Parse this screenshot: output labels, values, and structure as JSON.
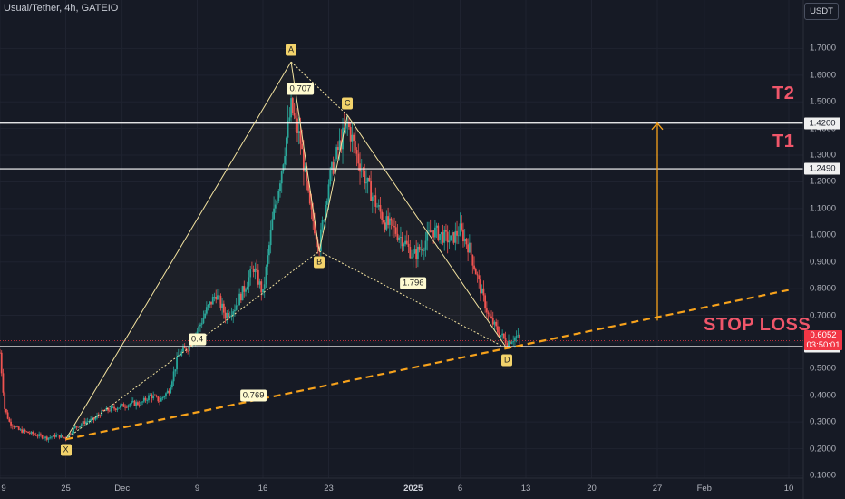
{
  "header": {
    "title": "Usual/Tether, 4h, GATEIO",
    "currency_button": "USDT"
  },
  "levels": {
    "t2": {
      "label": "T2",
      "price_tag": "1.4200"
    },
    "t1": {
      "label": "T1",
      "price_tag": "1.2490"
    },
    "stop": {
      "label": "STOP LOSS",
      "price_tag": "0.5830"
    }
  },
  "current_price": {
    "value": "0.6052",
    "countdown": "03:50:01"
  },
  "pattern": {
    "points": [
      {
        "label": "X",
        "date": "2024-11-25",
        "price": 0.235
      },
      {
        "label": "A",
        "date": "2024-12-19",
        "price": 1.65
      },
      {
        "label": "B",
        "date": "2024-12-22",
        "price": 0.94
      },
      {
        "label": "C",
        "date": "2024-12-25",
        "price": 1.45
      },
      {
        "label": "D",
        "date": "2025-01-11",
        "price": 0.575
      }
    ],
    "ratios": [
      {
        "label": "0.707",
        "date": "2024-12-20",
        "price": 1.55
      },
      {
        "label": "0.4",
        "date": "2024-12-09",
        "price": 0.61
      },
      {
        "label": "1.796",
        "date": "2025-01-01",
        "price": 0.82
      },
      {
        "label": "0.769",
        "date": "2024-12-15",
        "price": 0.4
      }
    ]
  },
  "chart_data": {
    "type": "candlestick",
    "title": "Usual/Tether, 4h, GATEIO",
    "x_range": [
      "2024-11-18",
      "2025-02-10"
    ],
    "ylim": [
      0.1,
      1.8
    ],
    "y_ticks": [
      "1.7000",
      "1.6000",
      "1.5000",
      "1.4000",
      "1.3000",
      "1.2000",
      "1.1000",
      "1.0000",
      "0.9000",
      "0.8000",
      "0.7000",
      "0.6000",
      "0.5000",
      "0.4000",
      "0.3000",
      "0.2000",
      "0.1000"
    ],
    "x_ticks": [
      {
        "label": "9",
        "date": "2024-11-18"
      },
      {
        "label": "25",
        "date": "2024-11-25"
      },
      {
        "label": "Dec",
        "date": "2024-12-01"
      },
      {
        "label": "9",
        "date": "2024-12-09"
      },
      {
        "label": "16",
        "date": "2024-12-16"
      },
      {
        "label": "23",
        "date": "2024-12-23"
      },
      {
        "label": "2025",
        "date": "2025-01-01",
        "bold": true
      },
      {
        "label": "6",
        "date": "2025-01-06"
      },
      {
        "label": "13",
        "date": "2025-01-13"
      },
      {
        "label": "20",
        "date": "2025-01-20"
      },
      {
        "label": "27",
        "date": "2025-01-27"
      },
      {
        "label": "Feb",
        "date": "2025-02-01"
      },
      {
        "label": "10",
        "date": "2025-02-10"
      }
    ],
    "series": [
      {
        "price_path": [
          [
            "2024-11-18",
            0.56
          ],
          [
            "2024-11-18T12",
            0.35
          ],
          [
            "2024-11-19",
            0.3
          ],
          [
            "2024-11-20",
            0.27
          ],
          [
            "2024-11-21",
            0.26
          ],
          [
            "2024-11-22",
            0.25
          ],
          [
            "2024-11-23",
            0.24
          ],
          [
            "2024-11-24",
            0.25
          ],
          [
            "2024-11-25",
            0.24
          ],
          [
            "2024-11-26",
            0.28
          ],
          [
            "2024-11-27",
            0.3
          ],
          [
            "2024-11-28",
            0.31
          ],
          [
            "2024-11-29",
            0.34
          ],
          [
            "2024-12-01",
            0.36
          ],
          [
            "2024-12-02",
            0.37
          ],
          [
            "2024-12-03",
            0.37
          ],
          [
            "2024-12-04",
            0.4
          ],
          [
            "2024-12-05",
            0.38
          ],
          [
            "2024-12-06",
            0.42
          ],
          [
            "2024-12-07",
            0.55
          ],
          [
            "2024-12-08",
            0.58
          ],
          [
            "2024-12-09",
            0.64
          ],
          [
            "2024-12-10",
            0.72
          ],
          [
            "2024-12-11",
            0.78
          ],
          [
            "2024-12-12",
            0.7
          ],
          [
            "2024-12-13",
            0.73
          ],
          [
            "2024-12-14",
            0.8
          ],
          [
            "2024-12-15",
            0.88
          ],
          [
            "2024-12-16",
            0.78
          ],
          [
            "2024-12-17",
            1.05
          ],
          [
            "2024-12-18",
            1.25
          ],
          [
            "2024-12-19",
            1.48
          ],
          [
            "2024-12-20",
            1.35
          ],
          [
            "2024-12-21",
            1.1
          ],
          [
            "2024-12-22",
            0.96
          ],
          [
            "2024-12-23",
            1.2
          ],
          [
            "2024-12-24",
            1.32
          ],
          [
            "2024-12-25",
            1.42
          ],
          [
            "2024-12-26",
            1.3
          ],
          [
            "2024-12-27",
            1.2
          ],
          [
            "2024-12-28",
            1.12
          ],
          [
            "2024-12-29",
            1.05
          ],
          [
            "2024-12-30",
            1.02
          ],
          [
            "2024-12-31",
            0.98
          ],
          [
            "2025-01-01",
            0.92
          ],
          [
            "2025-01-02",
            0.96
          ],
          [
            "2025-01-03",
            1.02
          ],
          [
            "2025-01-04",
            1.0
          ],
          [
            "2025-01-05",
            0.98
          ],
          [
            "2025-01-06",
            1.02
          ],
          [
            "2025-01-07",
            0.95
          ],
          [
            "2025-01-08",
            0.82
          ],
          [
            "2025-01-09",
            0.7
          ],
          [
            "2025-01-10",
            0.64
          ],
          [
            "2025-01-11",
            0.6
          ],
          [
            "2025-01-12",
            0.62
          ],
          [
            "2025-01-12T12",
            0.6052
          ]
        ]
      }
    ],
    "horizontal_lines": [
      1.42,
      1.249,
      0.583
    ],
    "trendline": {
      "from": [
        "2024-11-25",
        0.235
      ],
      "to": [
        "2025-02-10",
        0.795
      ],
      "style": "dashed"
    },
    "target_arrow": {
      "date": "2025-01-27",
      "from_price": 0.68,
      "to_price": 1.42
    },
    "colors": {
      "up": "#26a69a",
      "down": "#ef5350",
      "pattern": "#f3e3a0",
      "trend": "#f7a21b",
      "label_red": "#f0566a"
    }
  }
}
